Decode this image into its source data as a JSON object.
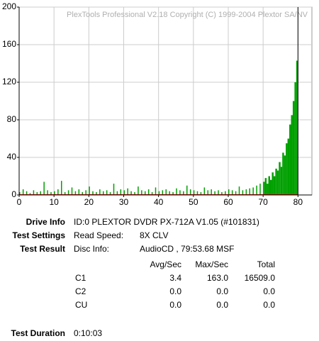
{
  "chart_data": {
    "type": "bar",
    "title": "PlexTools Professional V2.18 Copyright (C) 1999-2004 Plextor SA/NV",
    "x": [
      0,
      1,
      2,
      3,
      4,
      5,
      6,
      7,
      8,
      9,
      10,
      11,
      12,
      13,
      14,
      15,
      16,
      17,
      18,
      19,
      20,
      21,
      22,
      23,
      24,
      25,
      26,
      27,
      28,
      29,
      30,
      31,
      32,
      33,
      34,
      35,
      36,
      37,
      38,
      39,
      40,
      41,
      42,
      43,
      44,
      45,
      46,
      47,
      48,
      49,
      50,
      51,
      52,
      53,
      54,
      55,
      56,
      57,
      58,
      59,
      60,
      61,
      62,
      63,
      64,
      65,
      66,
      67,
      68,
      69,
      70,
      70.5,
      71,
      71.5,
      72,
      72.5,
      73,
      73.5,
      74,
      74.5,
      75,
      75.5,
      76,
      76.5,
      77,
      77.5,
      78,
      78.5,
      79,
      79.5
    ],
    "series": [
      {
        "color": "#00a000",
        "values": [
          3,
          6,
          4,
          2,
          5,
          3,
          4,
          14,
          5,
          3,
          4,
          6,
          15,
          3,
          5,
          8,
          4,
          6,
          3,
          5,
          9,
          4,
          3,
          6,
          4,
          5,
          3,
          12,
          4,
          6,
          5,
          7,
          4,
          3,
          9,
          5,
          4,
          6,
          3,
          8,
          4,
          5,
          6,
          4,
          3,
          7,
          5,
          4,
          10,
          6,
          5,
          4,
          3,
          8,
          5,
          6,
          4,
          5,
          3,
          4,
          6,
          5,
          4,
          9,
          5,
          6,
          7,
          8,
          10,
          12,
          14,
          18,
          12,
          20,
          16,
          24,
          20,
          28,
          26,
          35,
          30,
          45,
          42,
          55,
          60,
          75,
          85,
          100,
          120,
          143
        ]
      }
    ],
    "xlim": [
      0,
      84
    ],
    "xticks": [
      0,
      10,
      20,
      30,
      40,
      50,
      60,
      70,
      80
    ],
    "ylim": [
      0,
      200
    ],
    "yticks": [
      0,
      40,
      80,
      120,
      160,
      200
    ],
    "grid": true
  },
  "info": {
    "drive": {
      "label": "Drive Info",
      "value": "ID:0 PLEXTOR DVDR PX-712A V1.05 (#101831)"
    },
    "settings": {
      "label": "Test Settings",
      "key": "Read Speed:",
      "value": "8X CLV"
    },
    "result": {
      "label": "Test Result",
      "key": "Disc Info:",
      "value": "AudioCD , 79:53.68 MSF"
    },
    "table": {
      "header": [
        "Avg/Sec",
        "Max/Sec",
        "Total"
      ],
      "rows": [
        [
          "C1",
          "3.4",
          "163.0",
          "16509.0"
        ],
        [
          "C2",
          "0.0",
          "0.0",
          "0.0"
        ],
        [
          "CU",
          "0.0",
          "0.0",
          "0.0"
        ]
      ]
    },
    "duration": {
      "label": "Test Duration",
      "value": "0:10:03"
    }
  }
}
